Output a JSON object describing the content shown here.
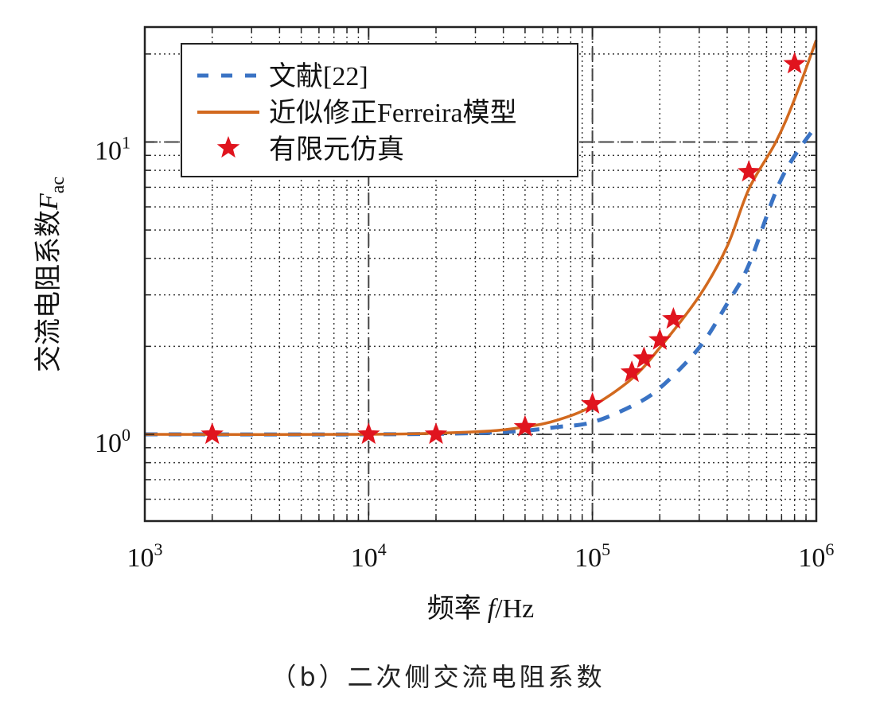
{
  "caption": "（b）二次侧交流电阻系数",
  "chart_data": {
    "type": "line",
    "title": "",
    "xlabel": "频率 f/Hz",
    "xlabel_parts": {
      "cn": "频率",
      "var": "f",
      "unit": "/Hz"
    },
    "ylabel": "交流电阻系数 F_ac",
    "ylabel_parts": {
      "cn": "交流电阻系数",
      "var": "F",
      "sub": "ac"
    },
    "xscale": "log",
    "yscale": "log",
    "xlim": [
      1000,
      1000000
    ],
    "ylim": [
      0.5,
      25
    ],
    "x_ticks": [
      {
        "value": 1000,
        "base": "10",
        "exp": "3"
      },
      {
        "value": 10000,
        "base": "10",
        "exp": "4"
      },
      {
        "value": 100000,
        "base": "10",
        "exp": "5"
      },
      {
        "value": 1000000,
        "base": "10",
        "exp": "6"
      }
    ],
    "y_ticks": [
      {
        "value": 1,
        "base": "10",
        "exp": "0"
      },
      {
        "value": 10,
        "base": "10",
        "exp": "1"
      }
    ],
    "grid": "dotted minor+major",
    "reference_lines": {
      "x": [
        10000,
        100000
      ],
      "y": [
        1,
        10
      ]
    },
    "legend_position": "upper left",
    "series": [
      {
        "name": "文献[22]",
        "style": "dashed",
        "color": "#3A73C4",
        "x": [
          1000,
          10000,
          30000,
          50000,
          70000,
          100000,
          150000,
          200000,
          300000,
          400000,
          500000,
          700000,
          1000000
        ],
        "y": [
          1.0,
          1.0,
          1.01,
          1.03,
          1.06,
          1.1,
          1.25,
          1.44,
          1.98,
          2.8,
          3.8,
          7.5,
          11.4
        ]
      },
      {
        "name": "近似修正Ferreira模型",
        "style": "solid",
        "color": "#D2691E",
        "x": [
          1000,
          10000,
          30000,
          50000,
          70000,
          100000,
          150000,
          200000,
          300000,
          400000,
          500000,
          660000,
          800000,
          1000000
        ],
        "y": [
          1.0,
          1.0,
          1.02,
          1.06,
          1.12,
          1.25,
          1.55,
          1.98,
          2.97,
          4.4,
          6.9,
          10.0,
          14.0,
          22.3
        ]
      },
      {
        "name": "有限元仿真",
        "style": "marker-star",
        "color": "#E0141E",
        "x": [
          2000,
          10000,
          20000,
          50000,
          100000,
          150000,
          170000,
          200000,
          230000,
          500000,
          800000
        ],
        "y": [
          1.0,
          1.0,
          1.0,
          1.06,
          1.27,
          1.63,
          1.82,
          2.1,
          2.48,
          7.9,
          18.5
        ]
      }
    ]
  }
}
